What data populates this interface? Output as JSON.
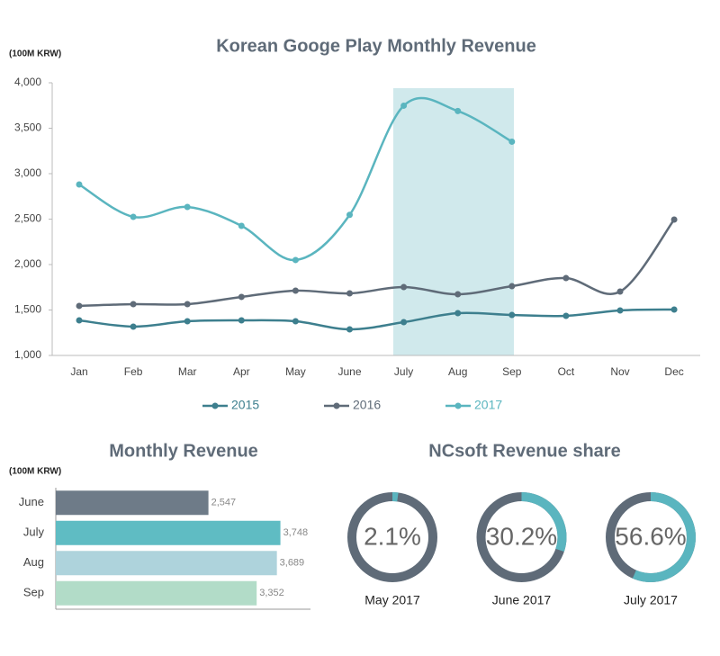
{
  "chart_data": [
    {
      "type": "line",
      "title": "Korean Googe Play Monthly Revenue",
      "y_label": "(100M KRW)",
      "categories": [
        "Jan",
        "Feb",
        "Mar",
        "Apr",
        "May",
        "June",
        "July",
        "Aug",
        "Sep",
        "Oct",
        "Nov",
        "Dec"
      ],
      "series": [
        {
          "name": "2015",
          "color": "#3d7f8e",
          "values": [
            1386,
            1317,
            1376,
            1386,
            1376,
            1287,
            1366,
            1465,
            1445,
            1436,
            1495,
            1505
          ]
        },
        {
          "name": "2016",
          "color": "#5f6b78",
          "values": [
            1545,
            1564,
            1564,
            1644,
            1713,
            1683,
            1752,
            1673,
            1762,
            1851,
            1703,
            2495
          ]
        },
        {
          "name": "2017",
          "color": "#5ab5bf",
          "values": [
            2881,
            2525,
            2634,
            2426,
            2050,
            2547,
            3748,
            3689,
            3352,
            null,
            null,
            null
          ]
        }
      ],
      "ylim": [
        1000,
        4000
      ],
      "yticks": [
        {
          "value": 1000,
          "label": "1,000"
        },
        {
          "value": 1500,
          "label": "1,500"
        },
        {
          "value": 2000,
          "label": "2,000"
        },
        {
          "value": 2500,
          "label": "2,500"
        },
        {
          "value": 3000,
          "label": "3,000"
        },
        {
          "value": 3500,
          "label": "3,500"
        },
        {
          "value": 4000,
          "label": "4,000"
        }
      ],
      "legend": "bottom"
    },
    {
      "type": "hbar",
      "title": "Monthly Revenue",
      "y_label": "(100M KRW)",
      "categories": [
        "June",
        "July",
        "Aug",
        "Sep"
      ],
      "values": [
        2547,
        3748,
        3689,
        3352
      ],
      "value_labels": [
        "2,547",
        "3,748",
        "3,689",
        "3,352"
      ],
      "colors": [
        "#6e7b88",
        "#5fbcc3",
        "#aed3dc",
        "#b2dcc8"
      ],
      "xlim": [
        0,
        4250
      ]
    },
    {
      "type": "donut",
      "title": "NCsoft Revenue share",
      "categories": [
        "May 2017",
        "June 2017",
        "July 2017"
      ],
      "values": [
        2.1,
        30.2,
        56.6
      ],
      "value_labels": [
        "2.1%",
        "30.2%",
        "56.6%"
      ],
      "color": "#5ab5bf",
      "rest_color": "#5f6b78"
    }
  ]
}
